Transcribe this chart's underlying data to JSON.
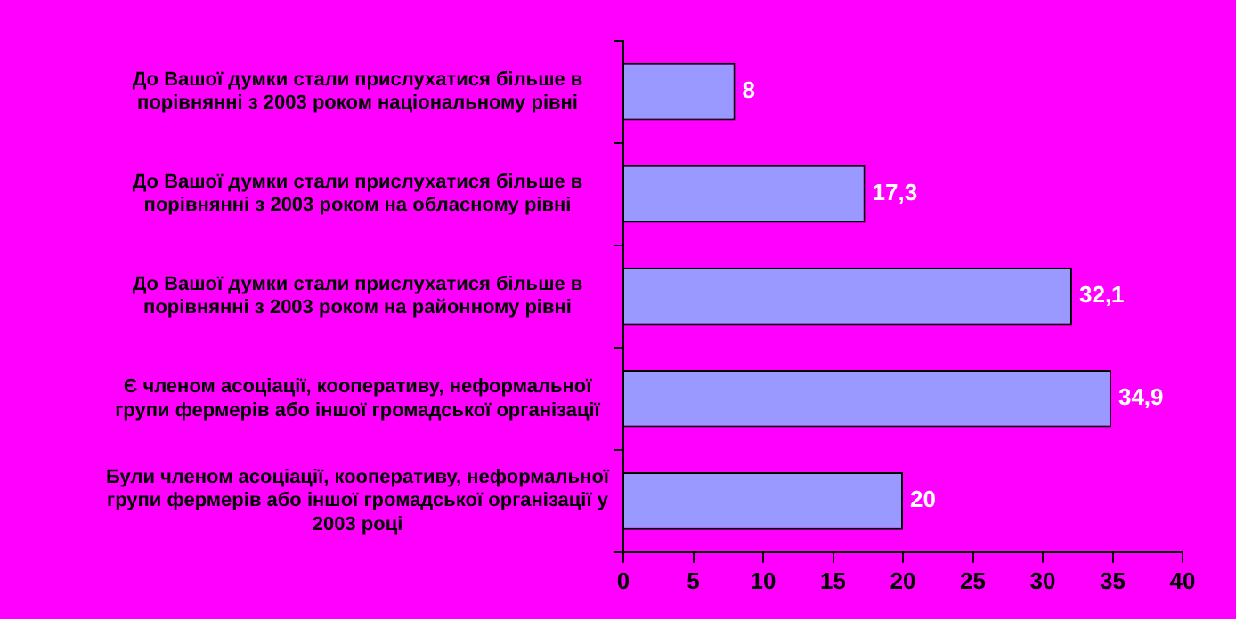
{
  "chart_data": {
    "type": "bar",
    "orientation": "horizontal",
    "categories": [
      "До Вашої думки стали прислухатися більше в порівнянні з 2003 роком національному рівні",
      "До Вашої думки стали прислухатися більше в порівнянні з 2003 роком на обласному рівні",
      "До Вашої думки стали прислухатися більше в порівнянні з 2003 роком на районному рівні",
      "Є членом асоціації, кооперативу, неформальної групи фермерів або іншої громадської організації",
      "Були членом асоціації, кооперативу, неформальної групи фермерів або іншої громадської організації у 2003 році"
    ],
    "values": [
      8,
      17.3,
      32.1,
      34.9,
      20
    ],
    "value_labels": [
      "8",
      "17,3",
      "32,1",
      "34,9",
      "20"
    ],
    "color": "#9999ff",
    "xlim": [
      0,
      40
    ],
    "xticks": [
      0,
      5,
      10,
      15,
      20,
      25,
      30,
      35,
      40
    ],
    "grid": false,
    "legend": false
  }
}
